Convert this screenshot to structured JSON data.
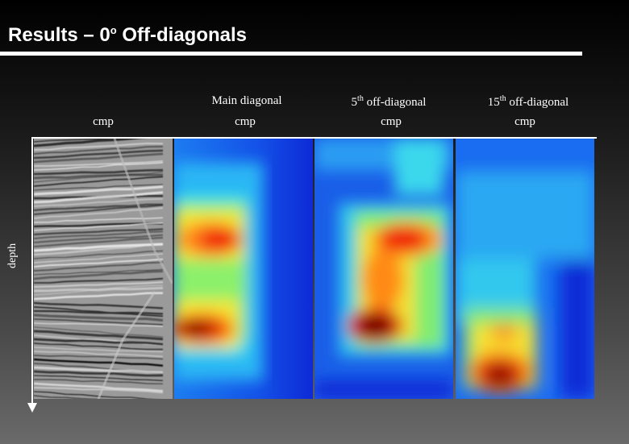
{
  "slide": {
    "title_prefix": "Results – 0",
    "title_sup": "o",
    "title_suffix": " Off-diagonals"
  },
  "panels": [
    {
      "top_label": "",
      "cmp_label": "cmp",
      "kind": "seismic"
    },
    {
      "top_label": "Main diagonal",
      "cmp_label": "cmp",
      "kind": "heatmap"
    },
    {
      "top_label_num": "5",
      "top_label_sup": "th",
      "top_label_rest": " off-diagonal",
      "cmp_label": "cmp",
      "kind": "heatmap"
    },
    {
      "top_label_num": "15",
      "top_label_sup": "th",
      "top_label_rest": " off-diagonal",
      "cmp_label": "cmp",
      "kind": "heatmap"
    }
  ],
  "axis": {
    "depth_label": "depth"
  },
  "colors": {
    "background_top": "#000000",
    "background_bottom": "#6a6a6a",
    "text": "#ffffff",
    "heat_low": "#0a2fd0",
    "heat_high": "#8a0000"
  }
}
